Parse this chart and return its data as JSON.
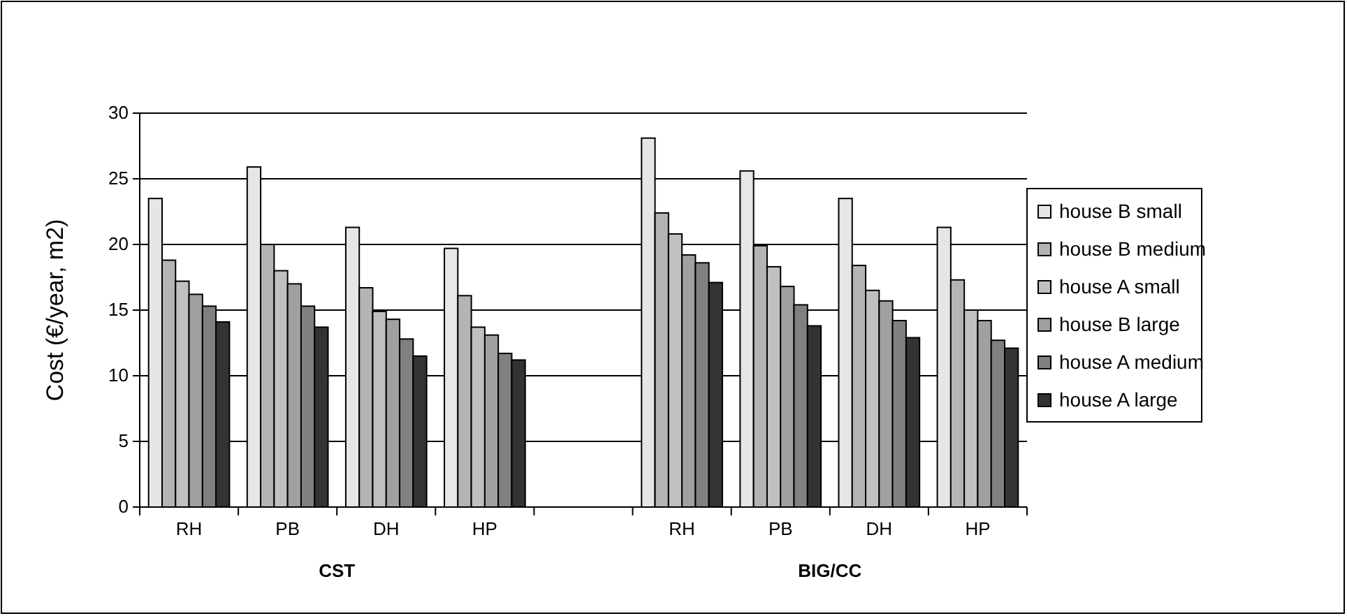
{
  "chart_data": {
    "type": "bar",
    "ylabel": "Cost (€/year, m2)",
    "categories": [
      "RH",
      "PB",
      "DH",
      "HP",
      null,
      "RH",
      "PB",
      "DH",
      "HP"
    ],
    "series": [
      {
        "name": "house B small",
        "color": "#e6e6e6",
        "values": [
          23.5,
          25.9,
          21.3,
          19.7,
          null,
          28.1,
          25.6,
          23.5,
          21.3
        ]
      },
      {
        "name": "house B medium",
        "color": "#b4b4b4",
        "values": [
          18.8,
          20.0,
          16.7,
          16.1,
          null,
          22.4,
          19.9,
          18.4,
          17.3
        ]
      },
      {
        "name": "house A small",
        "color": "#c0c0c0",
        "values": [
          17.2,
          18.0,
          14.9,
          13.7,
          null,
          20.8,
          18.3,
          16.5,
          15.0
        ]
      },
      {
        "name": "house B large",
        "color": "#a0a0a0",
        "values": [
          16.2,
          17.0,
          14.3,
          13.1,
          null,
          19.2,
          16.8,
          15.7,
          14.2
        ]
      },
      {
        "name": "house A medium",
        "color": "#808080",
        "values": [
          15.3,
          15.3,
          12.8,
          11.7,
          null,
          18.6,
          15.4,
          14.2,
          12.7
        ]
      },
      {
        "name": "house A large",
        "color": "#333333",
        "values": [
          14.1,
          13.7,
          11.5,
          11.2,
          null,
          17.1,
          13.8,
          12.9,
          12.1
        ]
      }
    ],
    "ylim": [
      0,
      30
    ],
    "yticks": [
      0,
      5,
      10,
      15,
      20,
      25,
      30
    ],
    "grid": "y",
    "legend": "right",
    "annotations": [
      "CST",
      "BIG/CC"
    ]
  }
}
